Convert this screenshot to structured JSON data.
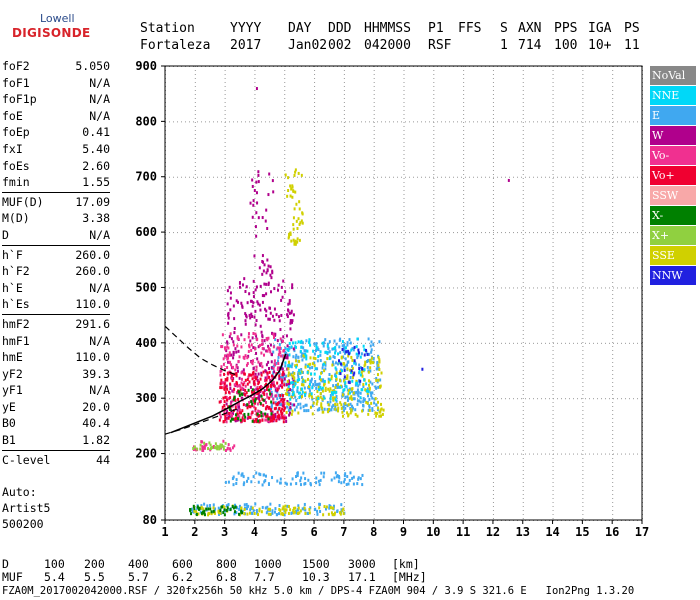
{
  "logo": {
    "line1": "Lowell",
    "line2": "DIGISONDE"
  },
  "header": {
    "labels": [
      "Station",
      "YYYY",
      "DAY",
      "DDD",
      "HHMMSS",
      "P1",
      "FFS",
      "S",
      "AXN",
      "PPS",
      "IGA",
      "PS"
    ],
    "values": [
      "Fortaleza",
      "2017",
      "Jan02",
      "002",
      "042000",
      "RSF",
      "",
      "1",
      "714",
      "100",
      "10+",
      "11"
    ]
  },
  "scaled": [
    {
      "group": [
        {
          "label": "foF2",
          "value": "5.050"
        },
        {
          "label": "foF1",
          "value": "N/A"
        },
        {
          "label": "foF1p",
          "value": "N/A"
        },
        {
          "label": "foE",
          "value": "N/A"
        },
        {
          "label": "foEp",
          "value": "0.41"
        },
        {
          "label": "fxI",
          "value": "5.40"
        },
        {
          "label": "foEs",
          "value": "2.60"
        },
        {
          "label": "fmin",
          "value": "1.55"
        }
      ]
    },
    {
      "group": [
        {
          "label": "MUF(D)",
          "value": "17.09"
        },
        {
          "label": "M(D)",
          "value": "3.38"
        },
        {
          "label": "D",
          "value": "N/A"
        }
      ]
    },
    {
      "group": [
        {
          "label": "h`F",
          "value": "260.0"
        },
        {
          "label": "h`F2",
          "value": "260.0"
        },
        {
          "label": "h`E",
          "value": "N/A"
        },
        {
          "label": "h`Es",
          "value": "110.0"
        }
      ]
    },
    {
      "group": [
        {
          "label": "hmF2",
          "value": "291.6"
        },
        {
          "label": "hmF1",
          "value": "N/A"
        },
        {
          "label": "hmE",
          "value": "110.0"
        },
        {
          "label": "yF2",
          "value": "39.3"
        },
        {
          "label": "yF1",
          "value": "N/A"
        },
        {
          "label": "yE",
          "value": "20.0"
        },
        {
          "label": "B0",
          "value": "40.4"
        },
        {
          "label": "B1",
          "value": "1.82"
        }
      ]
    },
    {
      "group": [
        {
          "label": "C-level",
          "value": "44"
        }
      ]
    }
  ],
  "auto": {
    "line1": "Auto:",
    "line2": "Artist5",
    "line3": "500200"
  },
  "legend": [
    {
      "label": "NoVal",
      "color": "#888888"
    },
    {
      "label": "NNE",
      "color": "#00d8f8"
    },
    {
      "label": "E",
      "color": "#40a8f0"
    },
    {
      "label": "W",
      "color": "#b0008c"
    },
    {
      "label": "Vo-",
      "color": "#f03090"
    },
    {
      "label": "Vo+",
      "color": "#f00030"
    },
    {
      "label": "SSW",
      "color": "#f8a8a8"
    },
    {
      "label": "X-",
      "color": "#008000"
    },
    {
      "label": "X+",
      "color": "#90d040"
    },
    {
      "label": "SSE",
      "color": "#d0d000"
    },
    {
      "label": "NNW",
      "color": "#2020e0"
    }
  ],
  "chart_data": {
    "type": "scatter",
    "xlabel": "",
    "ylabel": "",
    "xlim": [
      1,
      17
    ],
    "ylim": [
      80,
      900
    ],
    "x_ticks": [
      1,
      2,
      3,
      4,
      5,
      6,
      7,
      8,
      9,
      10,
      11,
      12,
      13,
      14,
      15,
      16,
      17
    ],
    "y_ticks": [
      80,
      200,
      300,
      400,
      500,
      600,
      700,
      800,
      900
    ],
    "grid": true,
    "echo_clusters": [
      {
        "name": "E",
        "x_range": [
          4.5,
          8.2
        ],
        "y_range": [
          280,
          410
        ],
        "count": 420
      },
      {
        "name": "W",
        "x_range": [
          3.0,
          5.3
        ],
        "y_range": [
          260,
          520
        ],
        "count": 300
      },
      {
        "name": "W",
        "x_range": [
          3.8,
          4.6
        ],
        "y_range": [
          450,
          740
        ],
        "count": 60
      },
      {
        "name": "Vo-",
        "x_range": [
          2.8,
          5.0
        ],
        "y_range": [
          260,
          420
        ],
        "count": 260
      },
      {
        "name": "Vo+",
        "x_range": [
          2.8,
          5.0
        ],
        "y_range": [
          260,
          350
        ],
        "count": 200
      },
      {
        "name": "SSE",
        "x_range": [
          5.0,
          8.3
        ],
        "y_range": [
          270,
          380
        ],
        "count": 220
      },
      {
        "name": "SSE",
        "x_range": [
          5.0,
          5.6
        ],
        "y_range": [
          580,
          720
        ],
        "count": 50
      },
      {
        "name": "NNE",
        "x_range": [
          5.0,
          7.8
        ],
        "y_range": [
          300,
          410
        ],
        "count": 120
      },
      {
        "name": "NNW",
        "x_range": [
          6.8,
          7.8
        ],
        "y_range": [
          330,
          395
        ],
        "count": 25
      },
      {
        "name": "X-",
        "x_range": [
          3.0,
          4.6
        ],
        "y_range": [
          260,
          320
        ],
        "count": 40
      },
      {
        "name": "E",
        "x_range": [
          3.0,
          7.6
        ],
        "y_range": [
          146,
          168
        ],
        "count": 90
      },
      {
        "name": "E",
        "x_range": [
          1.8,
          7.0
        ],
        "y_range": [
          92,
          112
        ],
        "count": 120
      },
      {
        "name": "SSE",
        "x_range": [
          1.9,
          7.0
        ],
        "y_range": [
          92,
          108
        ],
        "count": 90
      },
      {
        "name": "X-",
        "x_range": [
          1.8,
          3.6
        ],
        "y_range": [
          92,
          108
        ],
        "count": 40
      },
      {
        "name": "Vo-",
        "x_range": [
          1.9,
          3.3
        ],
        "y_range": [
          208,
          225
        ],
        "count": 30
      },
      {
        "name": "X+",
        "x_range": [
          1.9,
          3.0
        ],
        "y_range": [
          210,
          222
        ],
        "count": 25
      }
    ],
    "points": [
      {
        "name": "W",
        "x": 12.5,
        "y": 696
      },
      {
        "name": "NNW",
        "x": 9.6,
        "y": 355
      },
      {
        "name": "W",
        "x": 4.05,
        "y": 862
      }
    ],
    "profile_curve": {
      "color": "#000000",
      "x": [
        1.2,
        2.0,
        2.6,
        3.1,
        3.5,
        3.9,
        4.3,
        4.6,
        4.85,
        5.05
      ],
      "y": [
        238,
        255,
        268,
        282,
        294,
        305,
        318,
        332,
        350,
        380
      ]
    },
    "dashed_curves": [
      {
        "color": "#000000",
        "x": [
          1.0,
          1.4,
          1.8,
          2.2,
          2.6,
          3.0,
          3.4
        ],
        "y": [
          430,
          410,
          390,
          372,
          360,
          350,
          342
        ]
      },
      {
        "color": "#000000",
        "x": [
          1.0,
          1.5,
          2.0,
          2.5,
          3.0,
          3.5
        ],
        "y": [
          235,
          243,
          252,
          262,
          272,
          282
        ]
      }
    ]
  },
  "bottom": {
    "d_label": "D",
    "d_values": [
      "100",
      "200",
      "400",
      "600",
      "800",
      "1000",
      "1500",
      "3000"
    ],
    "d_unit": "[km]",
    "muf_label": "MUF",
    "muf_values": [
      "5.4",
      "5.5",
      "5.7",
      "6.2",
      "6.8",
      "7.7",
      "10.3",
      "17.1"
    ],
    "muf_unit": "[MHz]"
  },
  "footer": "FZA0M_2017002042000.RSF / 320fx256h 50 kHz 5.0 km / DPS-4 FZA0M 904 / 3.9 S 321.6 E   Ion2Png 1.3.20"
}
